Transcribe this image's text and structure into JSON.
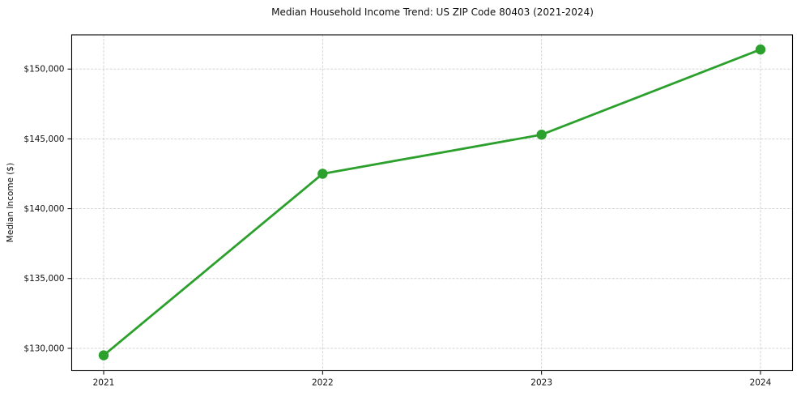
{
  "figure": {
    "title": "Median Household Income Trend: US ZIP Code 80403 (2021-2024)",
    "background": "#ffffff"
  },
  "chart_data": {
    "type": "line",
    "title": "Median Household Income Trend: US ZIP Code 80403 (2021-2024)",
    "xlabel": "",
    "ylabel": "Median Income ($)",
    "categories": [
      "2021",
      "2022",
      "2023",
      "2024"
    ],
    "series": [
      {
        "name": "Median Household Income",
        "values": [
          129500,
          142500,
          145300,
          151400
        ]
      }
    ],
    "yticks": [
      130000,
      135000,
      140000,
      145000,
      150000
    ],
    "ytick_labels": [
      "$130,000",
      "$135,000",
      "$140,000",
      "$145,000",
      "$150,000"
    ],
    "ylim": [
      128400,
      152450
    ],
    "grid": true,
    "grid_style": "dashed",
    "legend": "none",
    "marker": "o",
    "colors": {
      "line": "#2ca02c",
      "marker": "#2ca02c",
      "grid": "#cfcfcf",
      "spine": "#000000",
      "text": "#111111"
    }
  }
}
